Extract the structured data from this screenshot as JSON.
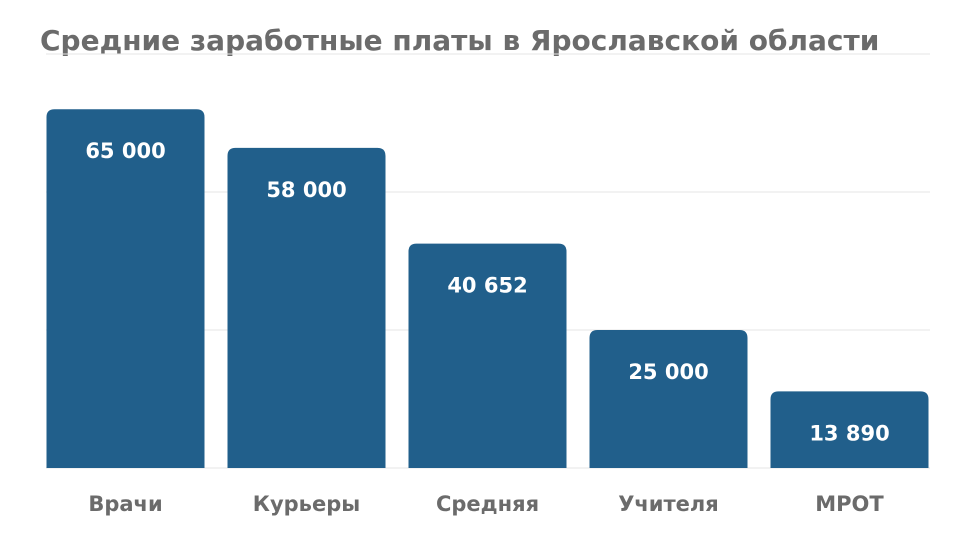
{
  "chart_data": {
    "type": "bar",
    "title": "Средние заработные платы в Ярославской области",
    "categories": [
      "Врачи",
      "Курьеры",
      "Средняя",
      "Учителя",
      "МРОТ"
    ],
    "values": [
      65000,
      58000,
      40652,
      25000,
      13890
    ],
    "value_labels": [
      "65 000",
      "58 000",
      "40 652",
      "25 000",
      "13 890"
    ],
    "color": "#215f8b",
    "ylim": [
      0,
      75000
    ],
    "yticks": [
      0,
      25000,
      50000,
      75000
    ],
    "grid": true
  }
}
